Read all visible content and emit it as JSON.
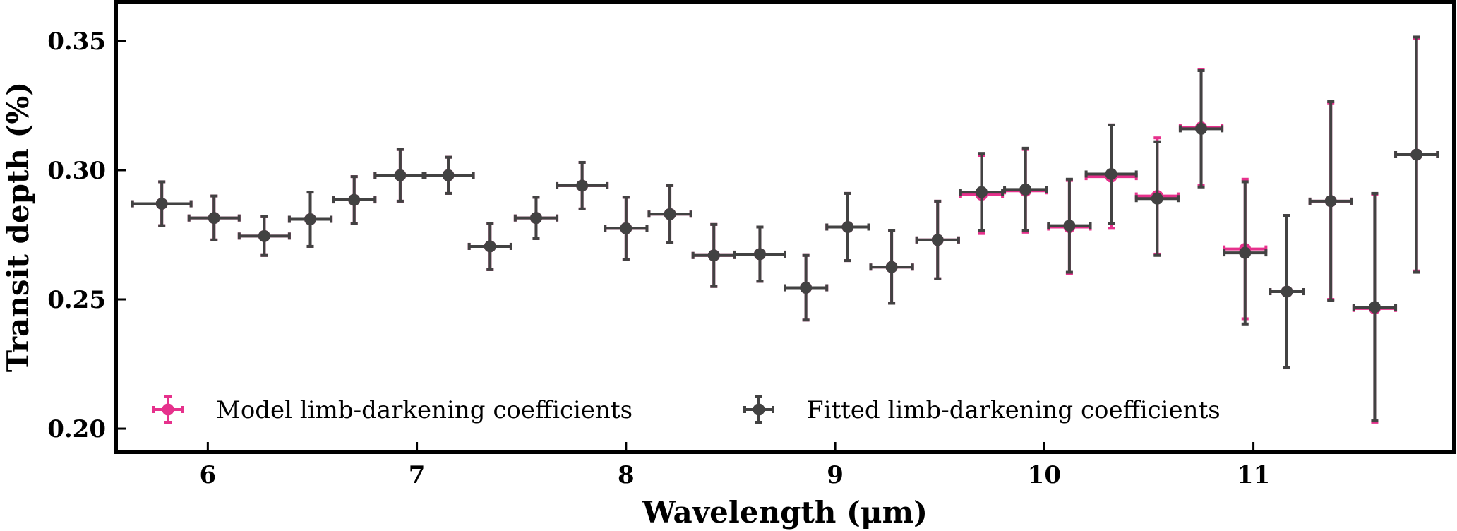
{
  "chart_data": {
    "type": "scatter",
    "title": "",
    "xlabel": "Wavelength (μm)",
    "ylabel": "Transit depth (%)",
    "xlim": [
      5.56,
      11.96
    ],
    "ylim": [
      0.191,
      0.365
    ],
    "xticks": [
      6,
      7,
      8,
      9,
      10,
      11
    ],
    "yticks": [
      0.2,
      0.25,
      0.3,
      0.35
    ],
    "xtick_labels": [
      "6",
      "7",
      "8",
      "9",
      "10",
      "11"
    ],
    "ytick_labels": [
      "0.20",
      "0.25",
      "0.30",
      "0.35"
    ],
    "grid": false,
    "legend": "lower-left",
    "series": [
      {
        "name": "Model limb-darkening coefficients",
        "color": "#e6318c",
        "points": [
          {
            "x": 5.78,
            "xerr": 0.14,
            "y": 0.287,
            "yerr": 0.0085
          },
          {
            "x": 6.03,
            "xerr": 0.12,
            "y": 0.2815,
            "yerr": 0.0085
          },
          {
            "x": 6.27,
            "xerr": 0.12,
            "y": 0.2745,
            "yerr": 0.0075
          },
          {
            "x": 6.49,
            "xerr": 0.1,
            "y": 0.281,
            "yerr": 0.0105
          },
          {
            "x": 6.7,
            "xerr": 0.1,
            "y": 0.2885,
            "yerr": 0.009
          },
          {
            "x": 6.92,
            "xerr": 0.12,
            "y": 0.298,
            "yerr": 0.01
          },
          {
            "x": 7.15,
            "xerr": 0.12,
            "y": 0.298,
            "yerr": 0.007
          },
          {
            "x": 7.35,
            "xerr": 0.1,
            "y": 0.2705,
            "yerr": 0.009
          },
          {
            "x": 7.57,
            "xerr": 0.1,
            "y": 0.2815,
            "yerr": 0.008
          },
          {
            "x": 7.79,
            "xerr": 0.12,
            "y": 0.294,
            "yerr": 0.009
          },
          {
            "x": 8.0,
            "xerr": 0.1,
            "y": 0.2775,
            "yerr": 0.012
          },
          {
            "x": 8.21,
            "xerr": 0.1,
            "y": 0.283,
            "yerr": 0.011
          },
          {
            "x": 8.42,
            "xerr": 0.1,
            "y": 0.267,
            "yerr": 0.012
          },
          {
            "x": 8.64,
            "xerr": 0.12,
            "y": 0.2675,
            "yerr": 0.0105
          },
          {
            "x": 8.86,
            "xerr": 0.1,
            "y": 0.2545,
            "yerr": 0.0125
          },
          {
            "x": 9.06,
            "xerr": 0.1,
            "y": 0.278,
            "yerr": 0.013
          },
          {
            "x": 9.27,
            "xerr": 0.1,
            "y": 0.2625,
            "yerr": 0.014
          },
          {
            "x": 9.49,
            "xerr": 0.1,
            "y": 0.273,
            "yerr": 0.015
          },
          {
            "x": 9.7,
            "xerr": 0.1,
            "y": 0.2905,
            "yerr": 0.015
          },
          {
            "x": 9.91,
            "xerr": 0.1,
            "y": 0.292,
            "yerr": 0.016
          },
          {
            "x": 10.12,
            "xerr": 0.1,
            "y": 0.278,
            "yerr": 0.018
          },
          {
            "x": 10.32,
            "xerr": 0.12,
            "y": 0.2975,
            "yerr": 0.02
          },
          {
            "x": 10.54,
            "xerr": 0.1,
            "y": 0.29,
            "yerr": 0.0225
          },
          {
            "x": 10.75,
            "xerr": 0.1,
            "y": 0.3165,
            "yerr": 0.0225
          },
          {
            "x": 10.96,
            "xerr": 0.1,
            "y": 0.2695,
            "yerr": 0.027
          },
          {
            "x": 11.16,
            "xerr": 0.08,
            "y": 0.253,
            "yerr": 0.0295
          },
          {
            "x": 11.37,
            "xerr": 0.1,
            "y": 0.288,
            "yerr": 0.038
          },
          {
            "x": 11.58,
            "xerr": 0.1,
            "y": 0.2465,
            "yerr": 0.044
          },
          {
            "x": 11.78,
            "xerr": 0.1,
            "y": 0.306,
            "yerr": 0.045
          }
        ]
      },
      {
        "name": "Fitted limb-darkening coefficients",
        "color": "#424242",
        "points": [
          {
            "x": 5.78,
            "xerr": 0.14,
            "y": 0.287,
            "yerr": 0.0085
          },
          {
            "x": 6.03,
            "xerr": 0.12,
            "y": 0.2815,
            "yerr": 0.0085
          },
          {
            "x": 6.27,
            "xerr": 0.12,
            "y": 0.2745,
            "yerr": 0.0075
          },
          {
            "x": 6.49,
            "xerr": 0.1,
            "y": 0.281,
            "yerr": 0.0105
          },
          {
            "x": 6.7,
            "xerr": 0.1,
            "y": 0.2885,
            "yerr": 0.009
          },
          {
            "x": 6.92,
            "xerr": 0.12,
            "y": 0.298,
            "yerr": 0.01
          },
          {
            "x": 7.15,
            "xerr": 0.12,
            "y": 0.298,
            "yerr": 0.007
          },
          {
            "x": 7.35,
            "xerr": 0.1,
            "y": 0.2705,
            "yerr": 0.009
          },
          {
            "x": 7.57,
            "xerr": 0.1,
            "y": 0.2815,
            "yerr": 0.008
          },
          {
            "x": 7.79,
            "xerr": 0.12,
            "y": 0.294,
            "yerr": 0.009
          },
          {
            "x": 8.0,
            "xerr": 0.1,
            "y": 0.2775,
            "yerr": 0.012
          },
          {
            "x": 8.21,
            "xerr": 0.1,
            "y": 0.283,
            "yerr": 0.011
          },
          {
            "x": 8.42,
            "xerr": 0.1,
            "y": 0.267,
            "yerr": 0.012
          },
          {
            "x": 8.64,
            "xerr": 0.12,
            "y": 0.2675,
            "yerr": 0.0105
          },
          {
            "x": 8.86,
            "xerr": 0.1,
            "y": 0.2545,
            "yerr": 0.0125
          },
          {
            "x": 9.06,
            "xerr": 0.1,
            "y": 0.278,
            "yerr": 0.013
          },
          {
            "x": 9.27,
            "xerr": 0.1,
            "y": 0.2625,
            "yerr": 0.014
          },
          {
            "x": 9.49,
            "xerr": 0.1,
            "y": 0.273,
            "yerr": 0.015
          },
          {
            "x": 9.7,
            "xerr": 0.1,
            "y": 0.2915,
            "yerr": 0.015
          },
          {
            "x": 9.91,
            "xerr": 0.1,
            "y": 0.2925,
            "yerr": 0.016
          },
          {
            "x": 10.12,
            "xerr": 0.1,
            "y": 0.2785,
            "yerr": 0.018
          },
          {
            "x": 10.32,
            "xerr": 0.12,
            "y": 0.2985,
            "yerr": 0.019
          },
          {
            "x": 10.54,
            "xerr": 0.1,
            "y": 0.289,
            "yerr": 0.022
          },
          {
            "x": 10.75,
            "xerr": 0.1,
            "y": 0.316,
            "yerr": 0.0225
          },
          {
            "x": 10.96,
            "xerr": 0.1,
            "y": 0.268,
            "yerr": 0.0275
          },
          {
            "x": 11.16,
            "xerr": 0.08,
            "y": 0.253,
            "yerr": 0.0295
          },
          {
            "x": 11.37,
            "xerr": 0.1,
            "y": 0.288,
            "yerr": 0.0385
          },
          {
            "x": 11.58,
            "xerr": 0.1,
            "y": 0.247,
            "yerr": 0.044
          },
          {
            "x": 11.78,
            "xerr": 0.1,
            "y": 0.306,
            "yerr": 0.0455
          }
        ]
      }
    ]
  }
}
